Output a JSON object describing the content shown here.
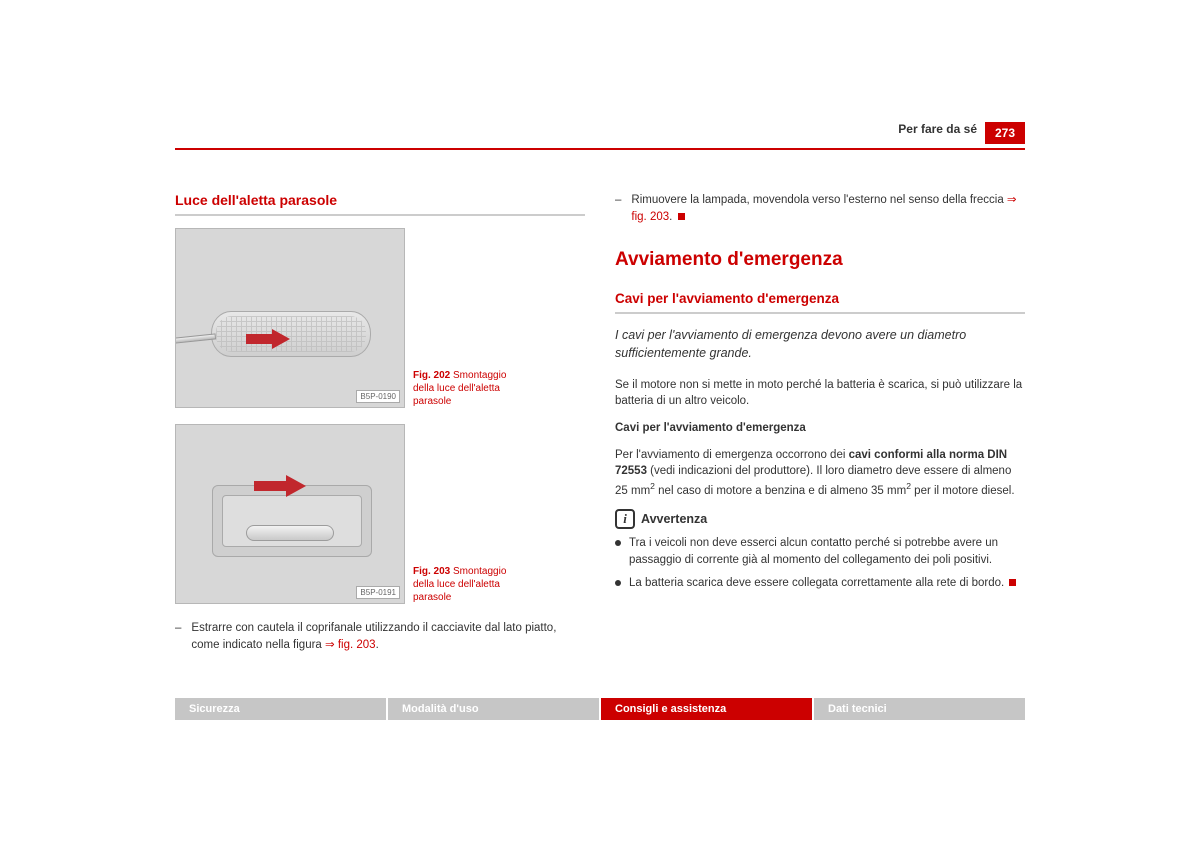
{
  "header": {
    "section": "Per fare da sé",
    "page_number": "273",
    "rule_color": "#cc0000"
  },
  "left": {
    "heading": "Luce dell'aletta parasole",
    "fig202": {
      "label": "Fig. 202",
      "caption_prefix": "Fig. 202   ",
      "caption": "Smontaggio della luce dell'aletta parasole",
      "tag": "B5P-0190"
    },
    "fig203": {
      "label": "Fig. 203",
      "caption_prefix": "Fig. 203   ",
      "caption": "Smontaggio della luce dell'aletta parasole",
      "tag": "B5P-0191"
    },
    "step1_a": "Estrarre con cautela il coprifanale utilizzando il cacciavite dal lato piatto, come indicato nella figura ",
    "step1_ref": "fig. 203",
    "step1_b": "."
  },
  "right": {
    "step2_a": "Rimuovere la lampada, movendola verso l'esterno nel senso della freccia ",
    "step2_ref": "fig. 203",
    "step2_b": ".",
    "h2": "Avviamento d'emergenza",
    "subheading": "Cavi per l'avviamento d'emergenza",
    "lead": "I cavi per l'avviamento di emergenza devono avere un diametro sufficientemente grande.",
    "p1": "Se il motore non si mette in moto perché la batteria è scarica, si può utilizzare la batteria di un altro veicolo.",
    "p2_title": "Cavi per l'avviamento d'emergenza",
    "p2_a": "Per l'avviamento di emergenza occorrono dei ",
    "p2_bold": "cavi conformi alla norma DIN 72553",
    "p2_b": " (vedi indicazioni del produttore). Il loro diametro deve essere di almeno 25 mm",
    "p2_c": " nel caso di motore a benzina e di almeno 35 mm",
    "p2_d": " per il motore diesel.",
    "sup": "2",
    "note_heading": "Avvertenza",
    "note1": "Tra i veicoli non deve esserci alcun contatto perché si potrebbe avere un passaggio di corrente già al momento del collegamento dei poli positivi.",
    "note2": "La batteria scarica deve essere collegata correttamente alla rete di bordo."
  },
  "tabs": {
    "items": [
      "Sicurezza",
      "Modalità d'uso",
      "Consigli e assistenza",
      "Dati tecnici"
    ],
    "active_index": 2
  },
  "colors": {
    "accent": "#cc0000",
    "tab_bg": "#c6c6c6"
  }
}
